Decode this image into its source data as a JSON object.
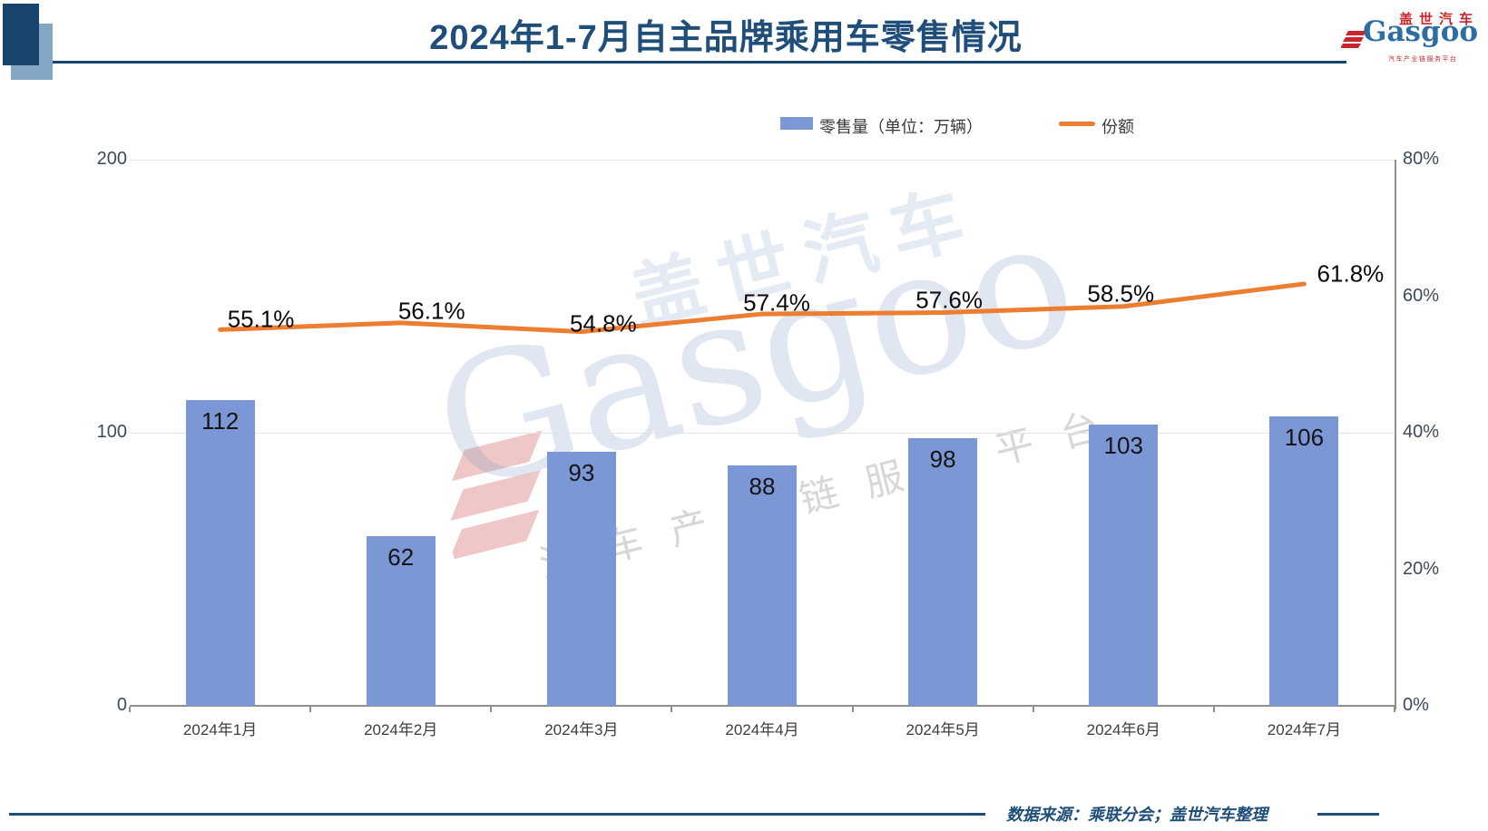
{
  "title": "2024年1-7月自主品牌乘用车零售情况",
  "logo": {
    "cn": "盖世汽车",
    "en": "Gasgoo",
    "tagline": "汽车产业链服务平台"
  },
  "legend": {
    "bar": "零售量（单位：万辆）",
    "line": "份额"
  },
  "watermark": {
    "cn": "盖世汽车",
    "en": "Gasgoo",
    "tagline": "汽车产业链服务平台"
  },
  "footer": {
    "source": "数据来源：乘联分会；盖世汽车整理"
  },
  "colors": {
    "bar": "#7c97d5",
    "line": "#ed7d31",
    "title": "#1e4e79",
    "logo_red": "#c9252c",
    "logo_blue": "#2e6da4"
  },
  "chart_data": {
    "type": "bar",
    "combo": "bar+line",
    "title": "2024年1-7月自主品牌乘用车零售情况",
    "categories": [
      "2024年1月",
      "2024年2月",
      "2024年3月",
      "2024年4月",
      "2024年5月",
      "2024年6月",
      "2024年7月"
    ],
    "series": [
      {
        "name": "零售量（单位：万辆）",
        "type": "bar",
        "axis": "left",
        "color": "#7c97d5",
        "values": [
          112,
          62,
          93,
          88,
          98,
          103,
          106
        ]
      },
      {
        "name": "份额",
        "type": "line",
        "axis": "right",
        "color": "#ed7d31",
        "unit": "%",
        "values": [
          55.1,
          56.1,
          54.8,
          57.4,
          57.6,
          58.5,
          61.8
        ]
      }
    ],
    "left_axis": {
      "range": [
        0,
        200
      ],
      "ticks": [
        0,
        100,
        200
      ],
      "tick_labels": [
        "0",
        "100",
        "200"
      ]
    },
    "right_axis": {
      "range": [
        0,
        80
      ],
      "ticks": [
        0,
        20,
        40,
        60,
        80
      ],
      "tick_labels": [
        "0%",
        "20%",
        "40%",
        "60%",
        "80%"
      ]
    },
    "grid": "horizontal-light",
    "legend_position": "top"
  }
}
